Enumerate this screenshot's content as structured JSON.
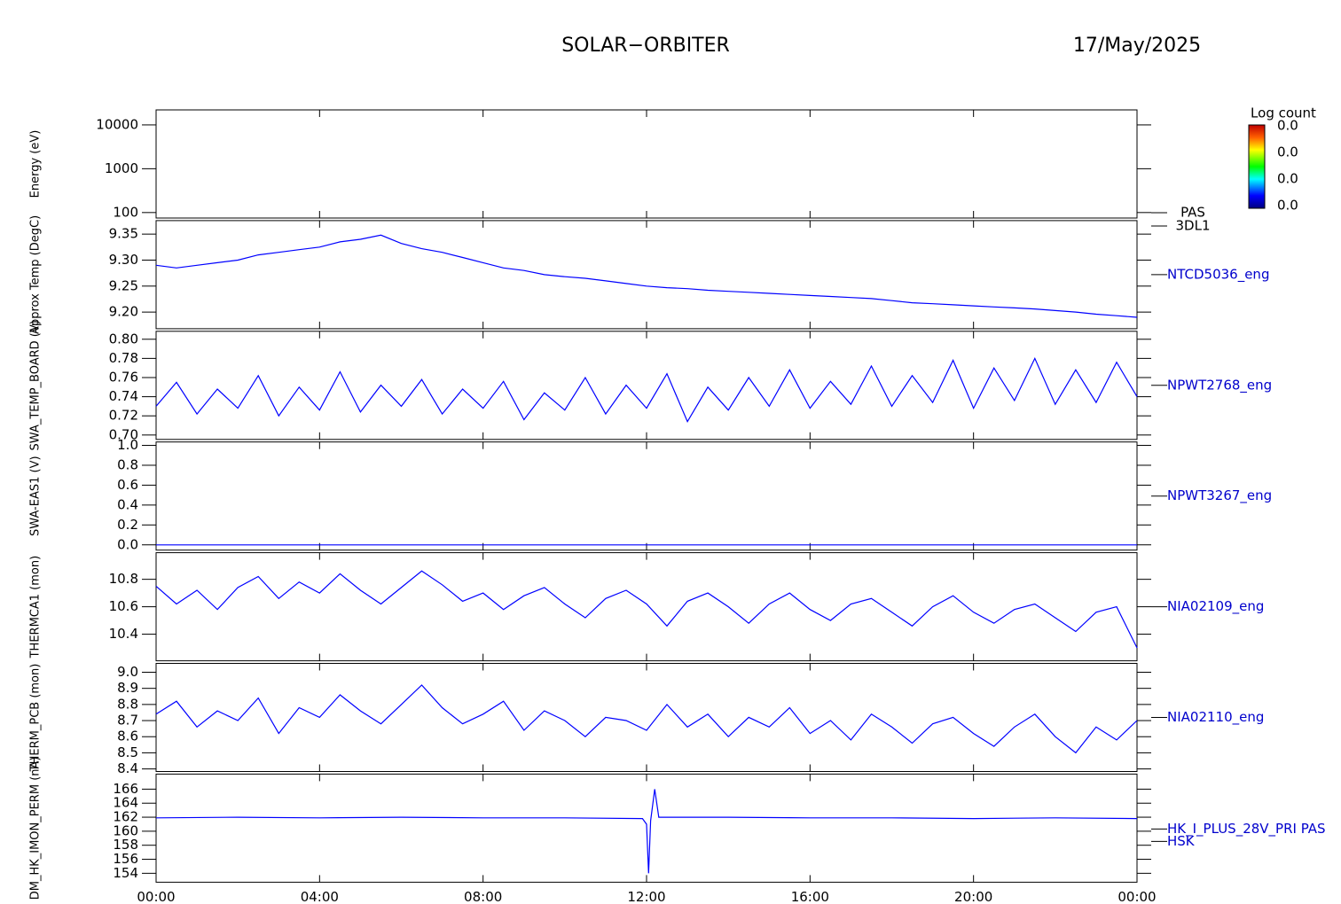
{
  "title": "SOLAR−ORBITER",
  "date": "17/May/2025",
  "colorbar": {
    "label": "Log count",
    "tick_labels": [
      "0.0",
      "0.0",
      "0.0",
      "0.0"
    ]
  },
  "chart_data": [
    {
      "type": "spectrogram",
      "label_lines": [
        "PAS",
        "3DL1"
      ],
      "ylabel": "Energy (eV)",
      "log_scale": true,
      "ylim": [
        75,
        22000
      ],
      "yticks": [
        100,
        1000,
        10000
      ]
    },
    {
      "type": "line",
      "label_lines": [
        "NTCD5036_eng"
      ],
      "ylabel": "Approx Temp (DegC)",
      "color": "#0000ff",
      "ylim": [
        9.168,
        9.376
      ],
      "yticks": [
        {
          "value": 9.2,
          "label": "9.20"
        },
        9.25,
        {
          "value": 9.3,
          "label": "9.30"
        },
        9.35
      ],
      "x": [
        0,
        0.5,
        1,
        1.5,
        2,
        2.5,
        3,
        3.5,
        4,
        4.5,
        5,
        5.5,
        6,
        6.5,
        7,
        7.5,
        8,
        8.5,
        9,
        9.5,
        10,
        10.5,
        11,
        11.5,
        12,
        12.5,
        13,
        13.5,
        14,
        14.5,
        15,
        15.5,
        16,
        16.5,
        17,
        17.5,
        18,
        18.5,
        19,
        19.5,
        20,
        20.5,
        21,
        21.5,
        22,
        22.5,
        23,
        23.5,
        24
      ],
      "values": [
        9.29,
        9.285,
        9.29,
        9.295,
        9.3,
        9.31,
        9.315,
        9.32,
        9.325,
        9.335,
        9.34,
        9.348,
        9.332,
        9.322,
        9.315,
        9.305,
        9.295,
        9.285,
        9.28,
        9.272,
        9.268,
        9.265,
        9.26,
        9.255,
        9.25,
        9.247,
        9.245,
        9.242,
        9.24,
        9.238,
        9.236,
        9.234,
        9.232,
        9.23,
        9.228,
        9.226,
        9.222,
        9.218,
        9.216,
        9.214,
        9.212,
        9.21,
        9.208,
        9.206,
        9.203,
        9.2,
        9.196,
        9.193,
        9.19
      ]
    },
    {
      "type": "line",
      "label_lines": [
        "NPWT2768_eng"
      ],
      "ylabel": "SWA_TEMP_BOARD (V)",
      "color": "#0000ff",
      "ylim": [
        0.6954,
        0.8083
      ],
      "yticks": [
        {
          "value": 0.7,
          "label": "0.70"
        },
        0.72,
        0.74,
        0.76,
        0.78,
        {
          "value": 0.8,
          "label": "0.80"
        }
      ],
      "x": [
        0,
        0.5,
        1,
        1.5,
        2,
        2.5,
        3,
        3.5,
        4,
        4.5,
        5,
        5.5,
        6,
        6.5,
        7,
        7.5,
        8,
        8.5,
        9,
        9.5,
        10,
        10.5,
        11,
        11.5,
        12,
        12.5,
        13,
        13.5,
        14,
        14.5,
        15,
        15.5,
        16,
        16.5,
        17,
        17.5,
        18,
        18.5,
        19,
        19.5,
        20,
        20.5,
        21,
        21.5,
        22,
        22.5,
        23,
        23.5,
        24
      ],
      "values": [
        0.73,
        0.755,
        0.722,
        0.748,
        0.728,
        0.762,
        0.72,
        0.75,
        0.726,
        0.766,
        0.724,
        0.752,
        0.73,
        0.758,
        0.722,
        0.748,
        0.728,
        0.756,
        0.716,
        0.744,
        0.726,
        0.76,
        0.722,
        0.752,
        0.728,
        0.764,
        0.714,
        0.75,
        0.726,
        0.76,
        0.73,
        0.768,
        0.728,
        0.756,
        0.732,
        0.772,
        0.73,
        0.762,
        0.734,
        0.778,
        0.728,
        0.77,
        0.736,
        0.78,
        0.732,
        0.768,
        0.734,
        0.776,
        0.74
      ]
    },
    {
      "type": "line",
      "label_lines": [
        "NPWT3267_eng"
      ],
      "ylabel": "SWA-EAS1 (V)",
      "color": "#0000ff",
      "ylim": [
        -0.053,
        1.034
      ],
      "yticks": [
        {
          "value": 0,
          "label": "0.0"
        },
        0.2,
        0.4,
        0.6,
        0.8,
        {
          "value": 1,
          "label": "1.0"
        }
      ],
      "x": [
        0,
        2,
        4,
        6,
        8,
        10,
        12,
        14,
        16,
        18,
        20,
        22,
        24
      ],
      "values": [
        0,
        0,
        0,
        0,
        0,
        0,
        0,
        0,
        0,
        0,
        0,
        0,
        0
      ]
    },
    {
      "type": "line",
      "label_lines": [
        "NIA02109_eng"
      ],
      "ylabel": "THERMCA1 (mon)",
      "color": "#0000ff",
      "ylim": [
        10.206,
        10.994
      ],
      "yticks": [
        10.4,
        10.6,
        10.8
      ],
      "x": [
        0,
        0.5,
        1,
        1.5,
        2,
        2.5,
        3,
        3.5,
        4,
        4.5,
        5,
        5.5,
        6,
        6.5,
        7,
        7.5,
        8,
        8.5,
        9,
        9.5,
        10,
        10.5,
        11,
        11.5,
        12,
        12.5,
        13,
        13.5,
        14,
        14.5,
        15,
        15.5,
        16,
        16.5,
        17,
        17.5,
        18,
        18.5,
        19,
        19.5,
        20,
        20.5,
        21,
        21.5,
        22,
        22.5,
        23,
        23.5,
        24
      ],
      "values": [
        10.75,
        10.62,
        10.72,
        10.58,
        10.74,
        10.82,
        10.66,
        10.78,
        10.7,
        10.84,
        10.72,
        10.62,
        10.74,
        10.86,
        10.76,
        10.64,
        10.7,
        10.58,
        10.68,
        10.74,
        10.62,
        10.52,
        10.66,
        10.72,
        10.62,
        10.46,
        10.64,
        10.7,
        10.6,
        10.48,
        10.62,
        10.7,
        10.58,
        10.5,
        10.62,
        10.66,
        10.56,
        10.46,
        10.6,
        10.68,
        10.56,
        10.48,
        10.58,
        10.62,
        10.52,
        10.42,
        10.56,
        10.6,
        10.3
      ]
    },
    {
      "type": "line",
      "label_lines": [
        "NIA02110_eng"
      ],
      "ylabel": "THERM_PCB (mon)",
      "color": "#0000ff",
      "ylim": [
        8.384,
        9.055
      ],
      "yticks": [
        8.4,
        8.5,
        8.6,
        8.7,
        8.8,
        8.9,
        {
          "value": 9,
          "label": "9.0"
        }
      ],
      "x": [
        0,
        0.5,
        1,
        1.5,
        2,
        2.5,
        3,
        3.5,
        4,
        4.5,
        5,
        5.5,
        6,
        6.5,
        7,
        7.5,
        8,
        8.5,
        9,
        9.5,
        10,
        10.5,
        11,
        11.5,
        12,
        12.5,
        13,
        13.5,
        14,
        14.5,
        15,
        15.5,
        16,
        16.5,
        17,
        17.5,
        18,
        18.5,
        19,
        19.5,
        20,
        20.5,
        21,
        21.5,
        22,
        22.5,
        23,
        23.5,
        24
      ],
      "values": [
        8.74,
        8.82,
        8.66,
        8.76,
        8.7,
        8.84,
        8.62,
        8.78,
        8.72,
        8.86,
        8.76,
        8.68,
        8.8,
        8.92,
        8.78,
        8.68,
        8.74,
        8.82,
        8.64,
        8.76,
        8.7,
        8.6,
        8.72,
        8.7,
        8.64,
        8.8,
        8.66,
        8.74,
        8.6,
        8.72,
        8.66,
        8.78,
        8.62,
        8.7,
        8.58,
        8.74,
        8.66,
        8.56,
        8.68,
        8.72,
        8.62,
        8.54,
        8.66,
        8.74,
        8.6,
        8.5,
        8.66,
        8.58,
        8.7
      ]
    },
    {
      "type": "line",
      "label_lines": [
        "HK_I_PLUS_28V_PRI PAS",
        "HSK"
      ],
      "ylabel": "DM_HK_IMON_PERM (nA)",
      "color": "#0000ff",
      "ylim": [
        152.73,
        168.15
      ],
      "yticks": [
        154,
        156,
        158,
        160,
        162,
        164,
        166
      ],
      "xlim": [
        0,
        24
      ],
      "xticks": [
        {
          "value": 0,
          "label": "00:00"
        },
        {
          "value": 4,
          "label": "04:00"
        },
        {
          "value": 8,
          "label": "08:00"
        },
        {
          "value": 12,
          "label": "12:00"
        },
        {
          "value": 16,
          "label": "16:00"
        },
        {
          "value": 20,
          "label": "20:00"
        },
        {
          "value": 24,
          "label": "00:00"
        }
      ],
      "x": [
        0,
        2,
        4,
        6,
        8,
        10,
        11.9,
        12.0,
        12.05,
        12.1,
        12.2,
        12.3,
        14,
        16,
        18,
        20,
        22,
        24
      ],
      "values": [
        161.9,
        162.0,
        161.9,
        162.0,
        161.9,
        161.9,
        161.8,
        161.0,
        154.0,
        161.5,
        166.0,
        162.0,
        162.0,
        161.9,
        161.9,
        161.8,
        161.9,
        161.8
      ]
    }
  ]
}
